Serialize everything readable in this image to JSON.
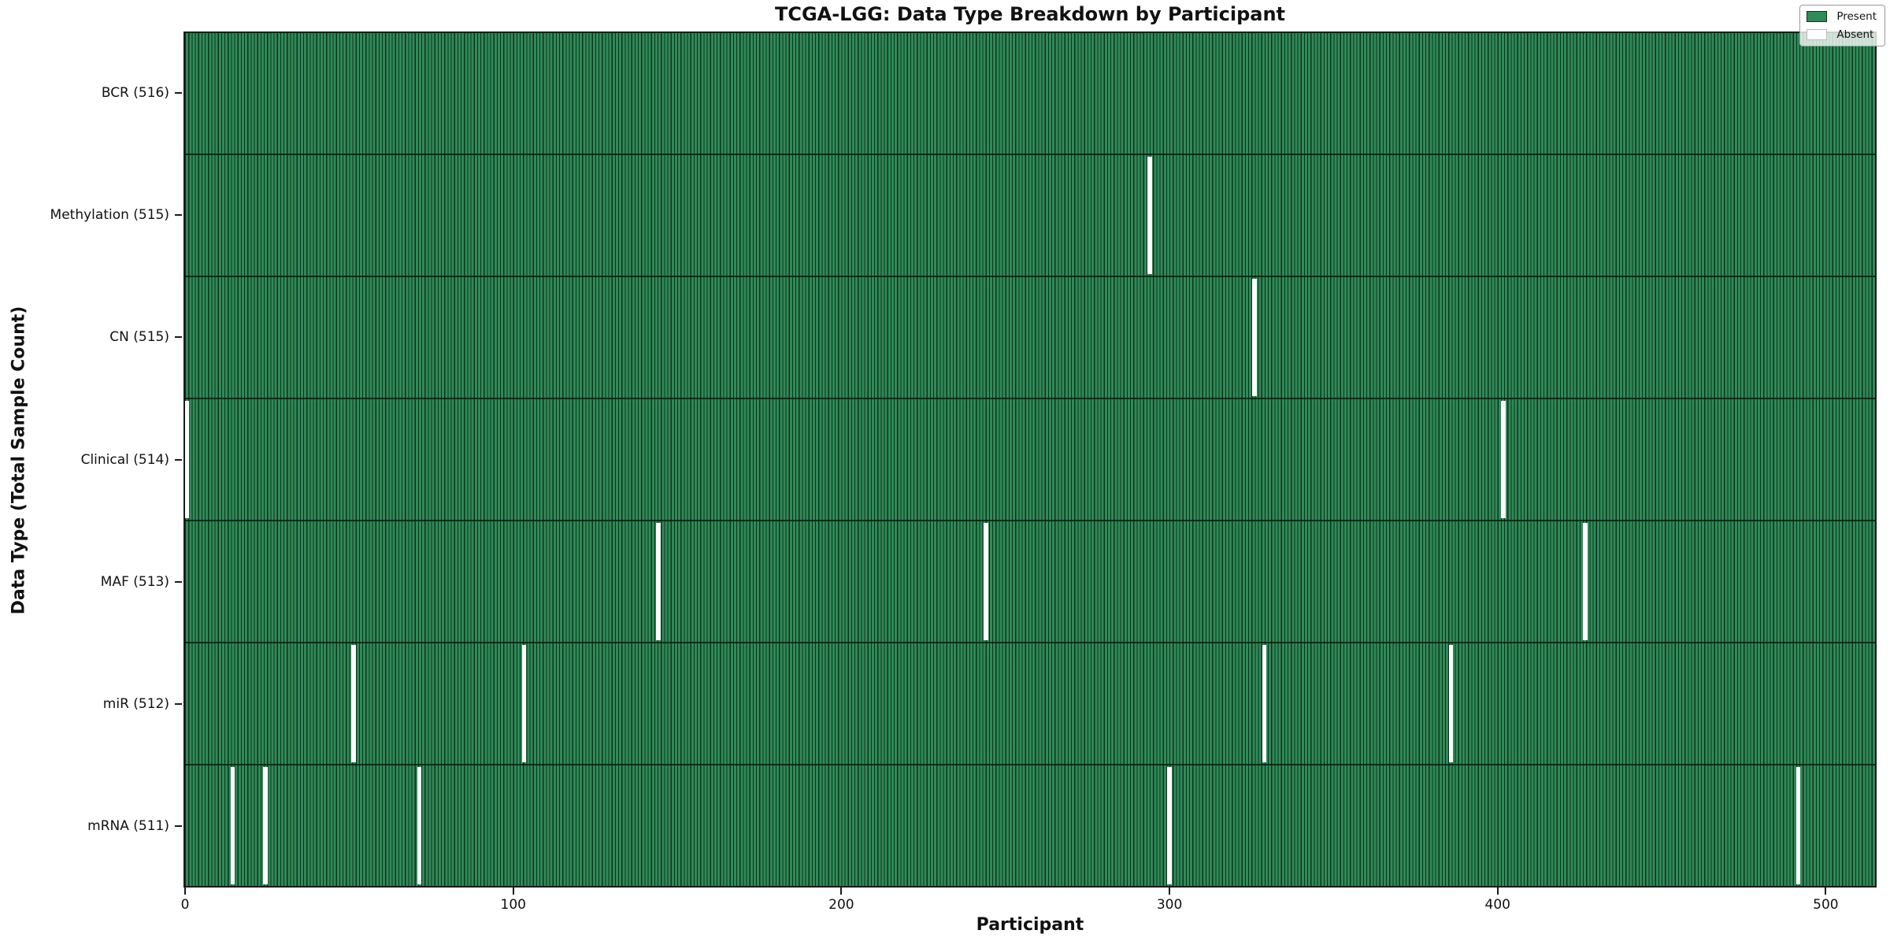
{
  "title": "TCGA-LGG: Data Type Breakdown by Participant",
  "chart_data": {
    "type": "heatmap",
    "title": "TCGA-LGG: Data Type Breakdown by Participant",
    "xlabel": "Participant",
    "ylabel": "Data Type (Total Sample Count)",
    "n_participants": 516,
    "x_ticks": [
      0,
      100,
      200,
      300,
      400,
      500
    ],
    "xlim": [
      -0.5,
      515.5
    ],
    "grid": false,
    "legend_position": "upper right",
    "legend": {
      "entries": [
        {
          "label": "Present",
          "color": "#2e8b57"
        },
        {
          "label": "Absent",
          "color": "#ffffff"
        }
      ]
    },
    "colors": {
      "present": "#2e8b57",
      "absent": "#ffffff",
      "bar_edge": "#12301f",
      "row_divider": "#081a10",
      "axis": "#1a1a1a"
    },
    "rows": [
      {
        "data_type": "BCR",
        "total": 516,
        "label": "BCR (516)",
        "absent_participants": []
      },
      {
        "data_type": "Methylation",
        "total": 515,
        "label": "Methylation (515)",
        "absent_participants": [
          294
        ]
      },
      {
        "data_type": "CN",
        "total": 515,
        "label": "CN (515)",
        "absent_participants": [
          326
        ]
      },
      {
        "data_type": "Clinical",
        "total": 514,
        "label": "Clinical (514)",
        "absent_participants": [
          0,
          402
        ]
      },
      {
        "data_type": "MAF",
        "total": 513,
        "label": "MAF (513)",
        "absent_participants": [
          144,
          244,
          427
        ]
      },
      {
        "data_type": "miR",
        "total": 512,
        "label": "miR (512)",
        "absent_participants": [
          51,
          103,
          329,
          386
        ]
      },
      {
        "data_type": "mRNA",
        "total": 511,
        "label": "mRNA (511)",
        "absent_participants": [
          14,
          24,
          71,
          300,
          492
        ]
      }
    ]
  }
}
